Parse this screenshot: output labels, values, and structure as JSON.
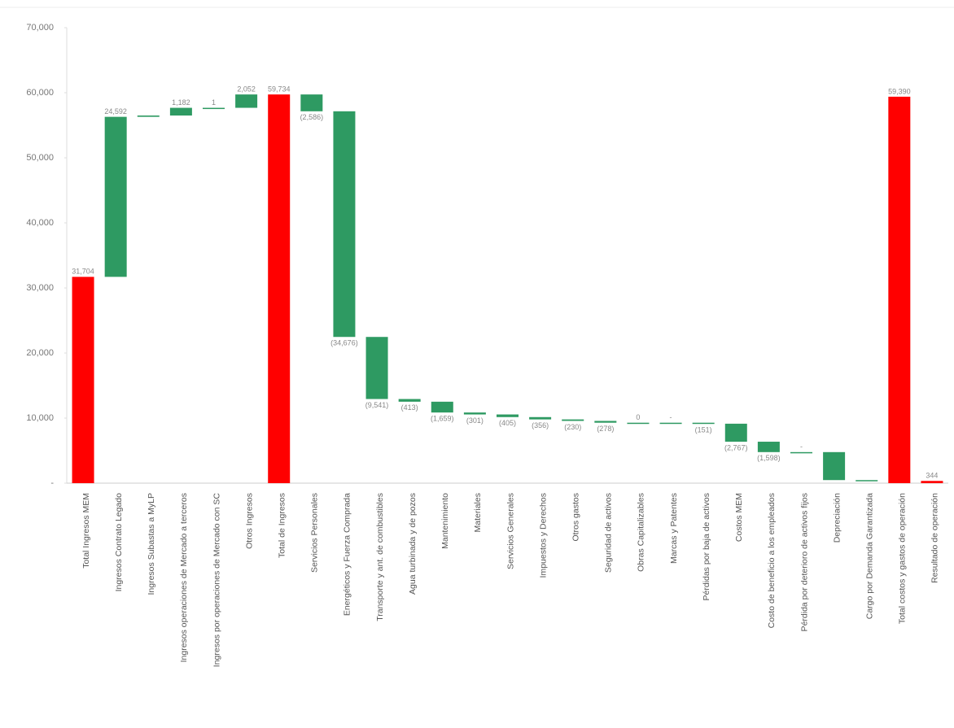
{
  "chart_data": {
    "type": "waterfall",
    "categories": [
      "Total Ingresos MEM",
      "Ingresos Contrato Legado",
      "Ingresos Subastas a MyLP",
      "Ingresos operaciones de Mercado a terceros",
      "Ingresos por operaciones de Mercado con SC",
      "Otros Ingresos",
      "Total de Ingresos",
      "Servicios Personales",
      "Energéticos y Fuerza Comprada",
      "Transporte y ant. de combustibles",
      "Agua turbinada y de pozos",
      "Mantenimiento",
      "Materiales",
      "Servicios Generales",
      "Impuestos y Derechos",
      "Otros gastos",
      "Seguridad de activos",
      "Obras Capitalizables",
      "Marcas y Patentes",
      "Pérdidas por baja de activos",
      "Costos MEM",
      "Costo de beneficio a los empleados",
      "Pérdida por deterioro de activos fijos",
      "Depreciación",
      "Cargo por Demanda Garantizada",
      "Total costos y gastos de operación",
      "Resultado de operación"
    ],
    "values": [
      31704,
      24592,
      203,
      1182,
      1,
      2052,
      59734,
      -2586,
      -34676,
      -9541,
      -413,
      -1659,
      -301,
      -405,
      -356,
      -230,
      -278,
      0,
      0,
      -151,
      -2767,
      -1598,
      0,
      -4300,
      -129,
      59390,
      344
    ],
    "value_labels": [
      "31,704",
      "24,592",
      null,
      "1,182",
      "1",
      "2,052",
      "59,734",
      "(2,586)",
      "(34,676)",
      "(9,541)",
      "(413)",
      "(1,659)",
      "(301)",
      "(405)",
      "(356)",
      "(230)",
      "(278)",
      "0",
      "-",
      "(151)",
      "(2,767)",
      "(1,598)",
      "-",
      null,
      null,
      "59,390",
      "344"
    ],
    "bar_kinds": [
      "total",
      "delta",
      "delta",
      "delta",
      "delta",
      "delta",
      "total",
      "delta",
      "delta",
      "delta",
      "delta",
      "delta",
      "delta",
      "delta",
      "delta",
      "delta",
      "delta",
      "delta",
      "delta",
      "delta",
      "delta",
      "delta",
      "delta",
      "delta",
      "delta",
      "total",
      "total"
    ],
    "colors": {
      "delta": "#2e9a62",
      "total": "#ff0000",
      "first": "#2e9a62",
      "last": "#ff0000"
    },
    "ylim": [
      0,
      70000
    ],
    "yticks": [
      {
        "value": 0,
        "label": "-"
      },
      {
        "value": 10000,
        "label": "10,000"
      },
      {
        "value": 20000,
        "label": "20,000"
      },
      {
        "value": 30000,
        "label": "30,000"
      },
      {
        "value": 40000,
        "label": "40,000"
      },
      {
        "value": 50000,
        "label": "50,000"
      },
      {
        "value": 60000,
        "label": "60,000"
      },
      {
        "value": 70000,
        "label": "70,000"
      }
    ]
  }
}
